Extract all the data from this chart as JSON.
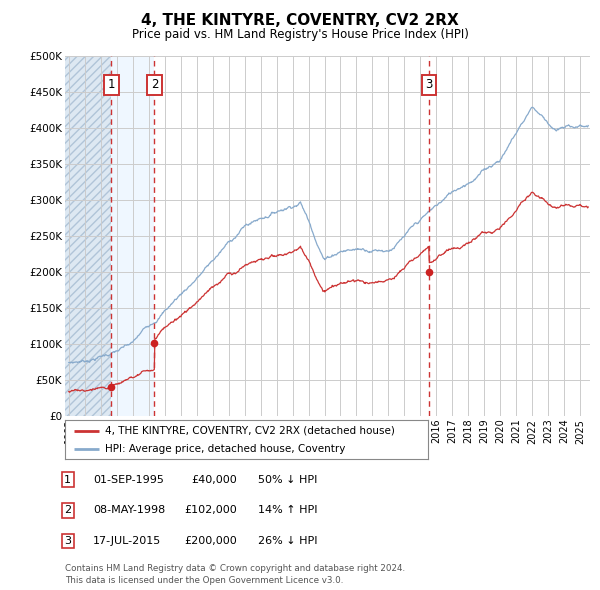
{
  "title": "4, THE KINTYRE, COVENTRY, CV2 2RX",
  "subtitle": "Price paid vs. HM Land Registry's House Price Index (HPI)",
  "ylim": [
    0,
    500000
  ],
  "yticks": [
    0,
    50000,
    100000,
    150000,
    200000,
    250000,
    300000,
    350000,
    400000,
    450000,
    500000
  ],
  "ytick_labels": [
    "£0",
    "£50K",
    "£100K",
    "£150K",
    "£200K",
    "£250K",
    "£300K",
    "£350K",
    "£400K",
    "£450K",
    "£500K"
  ],
  "xlim_start": 1992.75,
  "xlim_end": 2025.6,
  "sale_dates_decimal": [
    1995.67,
    1998.36,
    2015.54
  ],
  "sale_prices": [
    40000,
    102000,
    200000
  ],
  "sale_labels": [
    "1",
    "2",
    "3"
  ],
  "hpi_line_color": "#88aacc",
  "price_line_color": "#cc3333",
  "sale_marker_color": "#cc2222",
  "dashed_line_color": "#cc3333",
  "grid_color": "#cccccc",
  "bg_color": "#ffffff",
  "legend_entry1": "4, THE KINTYRE, COVENTRY, CV2 2RX (detached house)",
  "legend_entry2": "HPI: Average price, detached house, Coventry",
  "table_rows": [
    [
      "1",
      "01-SEP-1995",
      "£40,000",
      "50% ↓ HPI"
    ],
    [
      "2",
      "08-MAY-1998",
      "£102,000",
      "14% ↑ HPI"
    ],
    [
      "3",
      "17-JUL-2015",
      "£200,000",
      "26% ↓ HPI"
    ]
  ],
  "footnote": "Contains HM Land Registry data © Crown copyright and database right 2024.\nThis data is licensed under the Open Government Licence v3.0."
}
